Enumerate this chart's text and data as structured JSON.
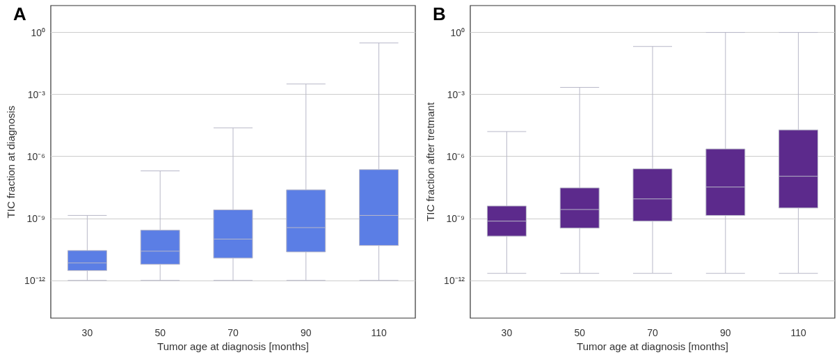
{
  "chart_data": [
    {
      "type": "box",
      "title": "A",
      "xlabel": "Tumor age at diagnosis [months]",
      "ylabel": "TIC fraction at diagnosis",
      "categories": [
        "30",
        "50",
        "70",
        "90",
        "110"
      ],
      "log": "y",
      "grid": "y",
      "color": "#5b7ee5",
      "ylim": [
        1.5e-14,
        20
      ],
      "yticks": [
        {
          "value": 1e-12,
          "label": "10⁻¹²"
        },
        {
          "value": 1e-09,
          "label": "10⁻⁹"
        },
        {
          "value": 1e-06,
          "label": "10⁻⁶"
        },
        {
          "value": 0.001,
          "label": "10⁻³"
        },
        {
          "value": 1,
          "label": "10⁰"
        }
      ],
      "boxes": [
        {
          "low": 1e-12,
          "q1": 3e-12,
          "median": 7e-12,
          "q3": 2.8e-11,
          "high": 1.4e-09
        },
        {
          "low": 1e-12,
          "q1": 6e-12,
          "median": 2.6e-11,
          "q3": 2.7e-10,
          "high": 2e-07
        },
        {
          "low": 1e-12,
          "q1": 1.2e-11,
          "median": 1e-10,
          "q3": 2.6e-09,
          "high": 2.4e-05
        },
        {
          "low": 1e-12,
          "q1": 2.4e-11,
          "median": 3.6e-10,
          "q3": 2.4e-08,
          "high": 0.0032
        },
        {
          "low": 1e-12,
          "q1": 4.9e-11,
          "median": 1.4e-09,
          "q3": 2.3e-07,
          "high": 0.31
        }
      ]
    },
    {
      "type": "box",
      "title": "B",
      "xlabel": "Tumor age at diagnosis [months]",
      "ylabel": "TIC fraction after tretmant",
      "categories": [
        "30",
        "50",
        "70",
        "90",
        "110"
      ],
      "log": "y",
      "grid": "y",
      "color": "#5c2a8c",
      "ylim": [
        1.5e-14,
        20
      ],
      "yticks": [
        {
          "value": 1e-12,
          "label": "10⁻¹²"
        },
        {
          "value": 1e-09,
          "label": "10⁻⁹"
        },
        {
          "value": 1e-06,
          "label": "10⁻⁶"
        },
        {
          "value": 0.001,
          "label": "10⁻³"
        },
        {
          "value": 1,
          "label": "10⁰"
        }
      ],
      "boxes": [
        {
          "low": 2.2e-12,
          "q1": 1.4e-10,
          "median": 7.4e-10,
          "q3": 4e-09,
          "high": 1.6e-05
        },
        {
          "low": 2.2e-12,
          "q1": 3.4e-10,
          "median": 2.7e-09,
          "q3": 3e-08,
          "high": 0.0022
        },
        {
          "low": 2.2e-12,
          "q1": 7.4e-10,
          "median": 8.8e-09,
          "q3": 2.5e-07,
          "high": 0.21
        },
        {
          "low": 2.2e-12,
          "q1": 1.4e-09,
          "median": 3.3e-08,
          "q3": 2.3e-06,
          "high": 1
        },
        {
          "low": 2.2e-12,
          "q1": 3.2e-09,
          "median": 1.1e-07,
          "q3": 1.9e-05,
          "high": 1
        }
      ]
    }
  ]
}
